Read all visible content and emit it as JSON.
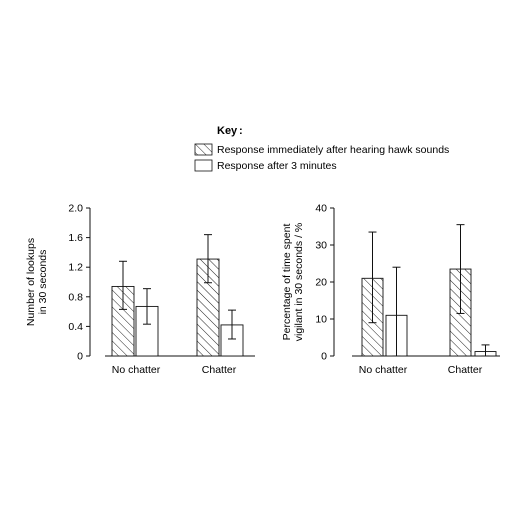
{
  "legend": {
    "title": "Key",
    "items": [
      {
        "label": "Response immediately after hearing hawk sounds",
        "pattern": "hatched"
      },
      {
        "label": "Response after 3 minutes",
        "pattern": "open"
      }
    ]
  },
  "chart_data": [
    {
      "type": "bar",
      "categories": [
        "No chatter",
        "Chatter"
      ],
      "ylabel_lines": [
        "Number of lookups",
        "in 30 seconds"
      ],
      "ylim": [
        0,
        2.0
      ],
      "yticks": [
        "0",
        "0.4",
        "0.8",
        "1.2",
        "1.6",
        "2.0"
      ],
      "ytick_values": [
        0,
        0.4,
        0.8,
        1.2,
        1.6,
        2.0
      ],
      "grid": false,
      "legend_position": "top",
      "series": [
        {
          "name": "Response immediately after hearing hawk sounds",
          "values": [
            0.94,
            1.31
          ],
          "err_low": [
            0.63,
            0.99
          ],
          "err_high": [
            1.28,
            1.64
          ]
        },
        {
          "name": "Response after 3 minutes",
          "values": [
            0.67,
            0.42
          ],
          "err_low": [
            0.43,
            0.23
          ],
          "err_high": [
            0.91,
            0.62
          ]
        }
      ]
    },
    {
      "type": "bar",
      "categories": [
        "No chatter",
        "Chatter"
      ],
      "ylabel_lines": [
        "Percentage of time spent",
        "vigilant in 30 seconds / %"
      ],
      "ylim": [
        0,
        40
      ],
      "yticks": [
        "0",
        "10",
        "20",
        "30",
        "40"
      ],
      "ytick_values": [
        0,
        10,
        20,
        30,
        40
      ],
      "grid": false,
      "legend_position": "top",
      "series": [
        {
          "name": "Response immediately after hearing hawk sounds",
          "values": [
            21,
            23.5
          ],
          "err_low": [
            9,
            11.5
          ],
          "err_high": [
            33.5,
            35.5
          ]
        },
        {
          "name": "Response after 3 minutes",
          "values": [
            11,
            1.2
          ],
          "err_low": [
            0,
            0
          ],
          "err_high": [
            24,
            3
          ]
        }
      ]
    }
  ]
}
